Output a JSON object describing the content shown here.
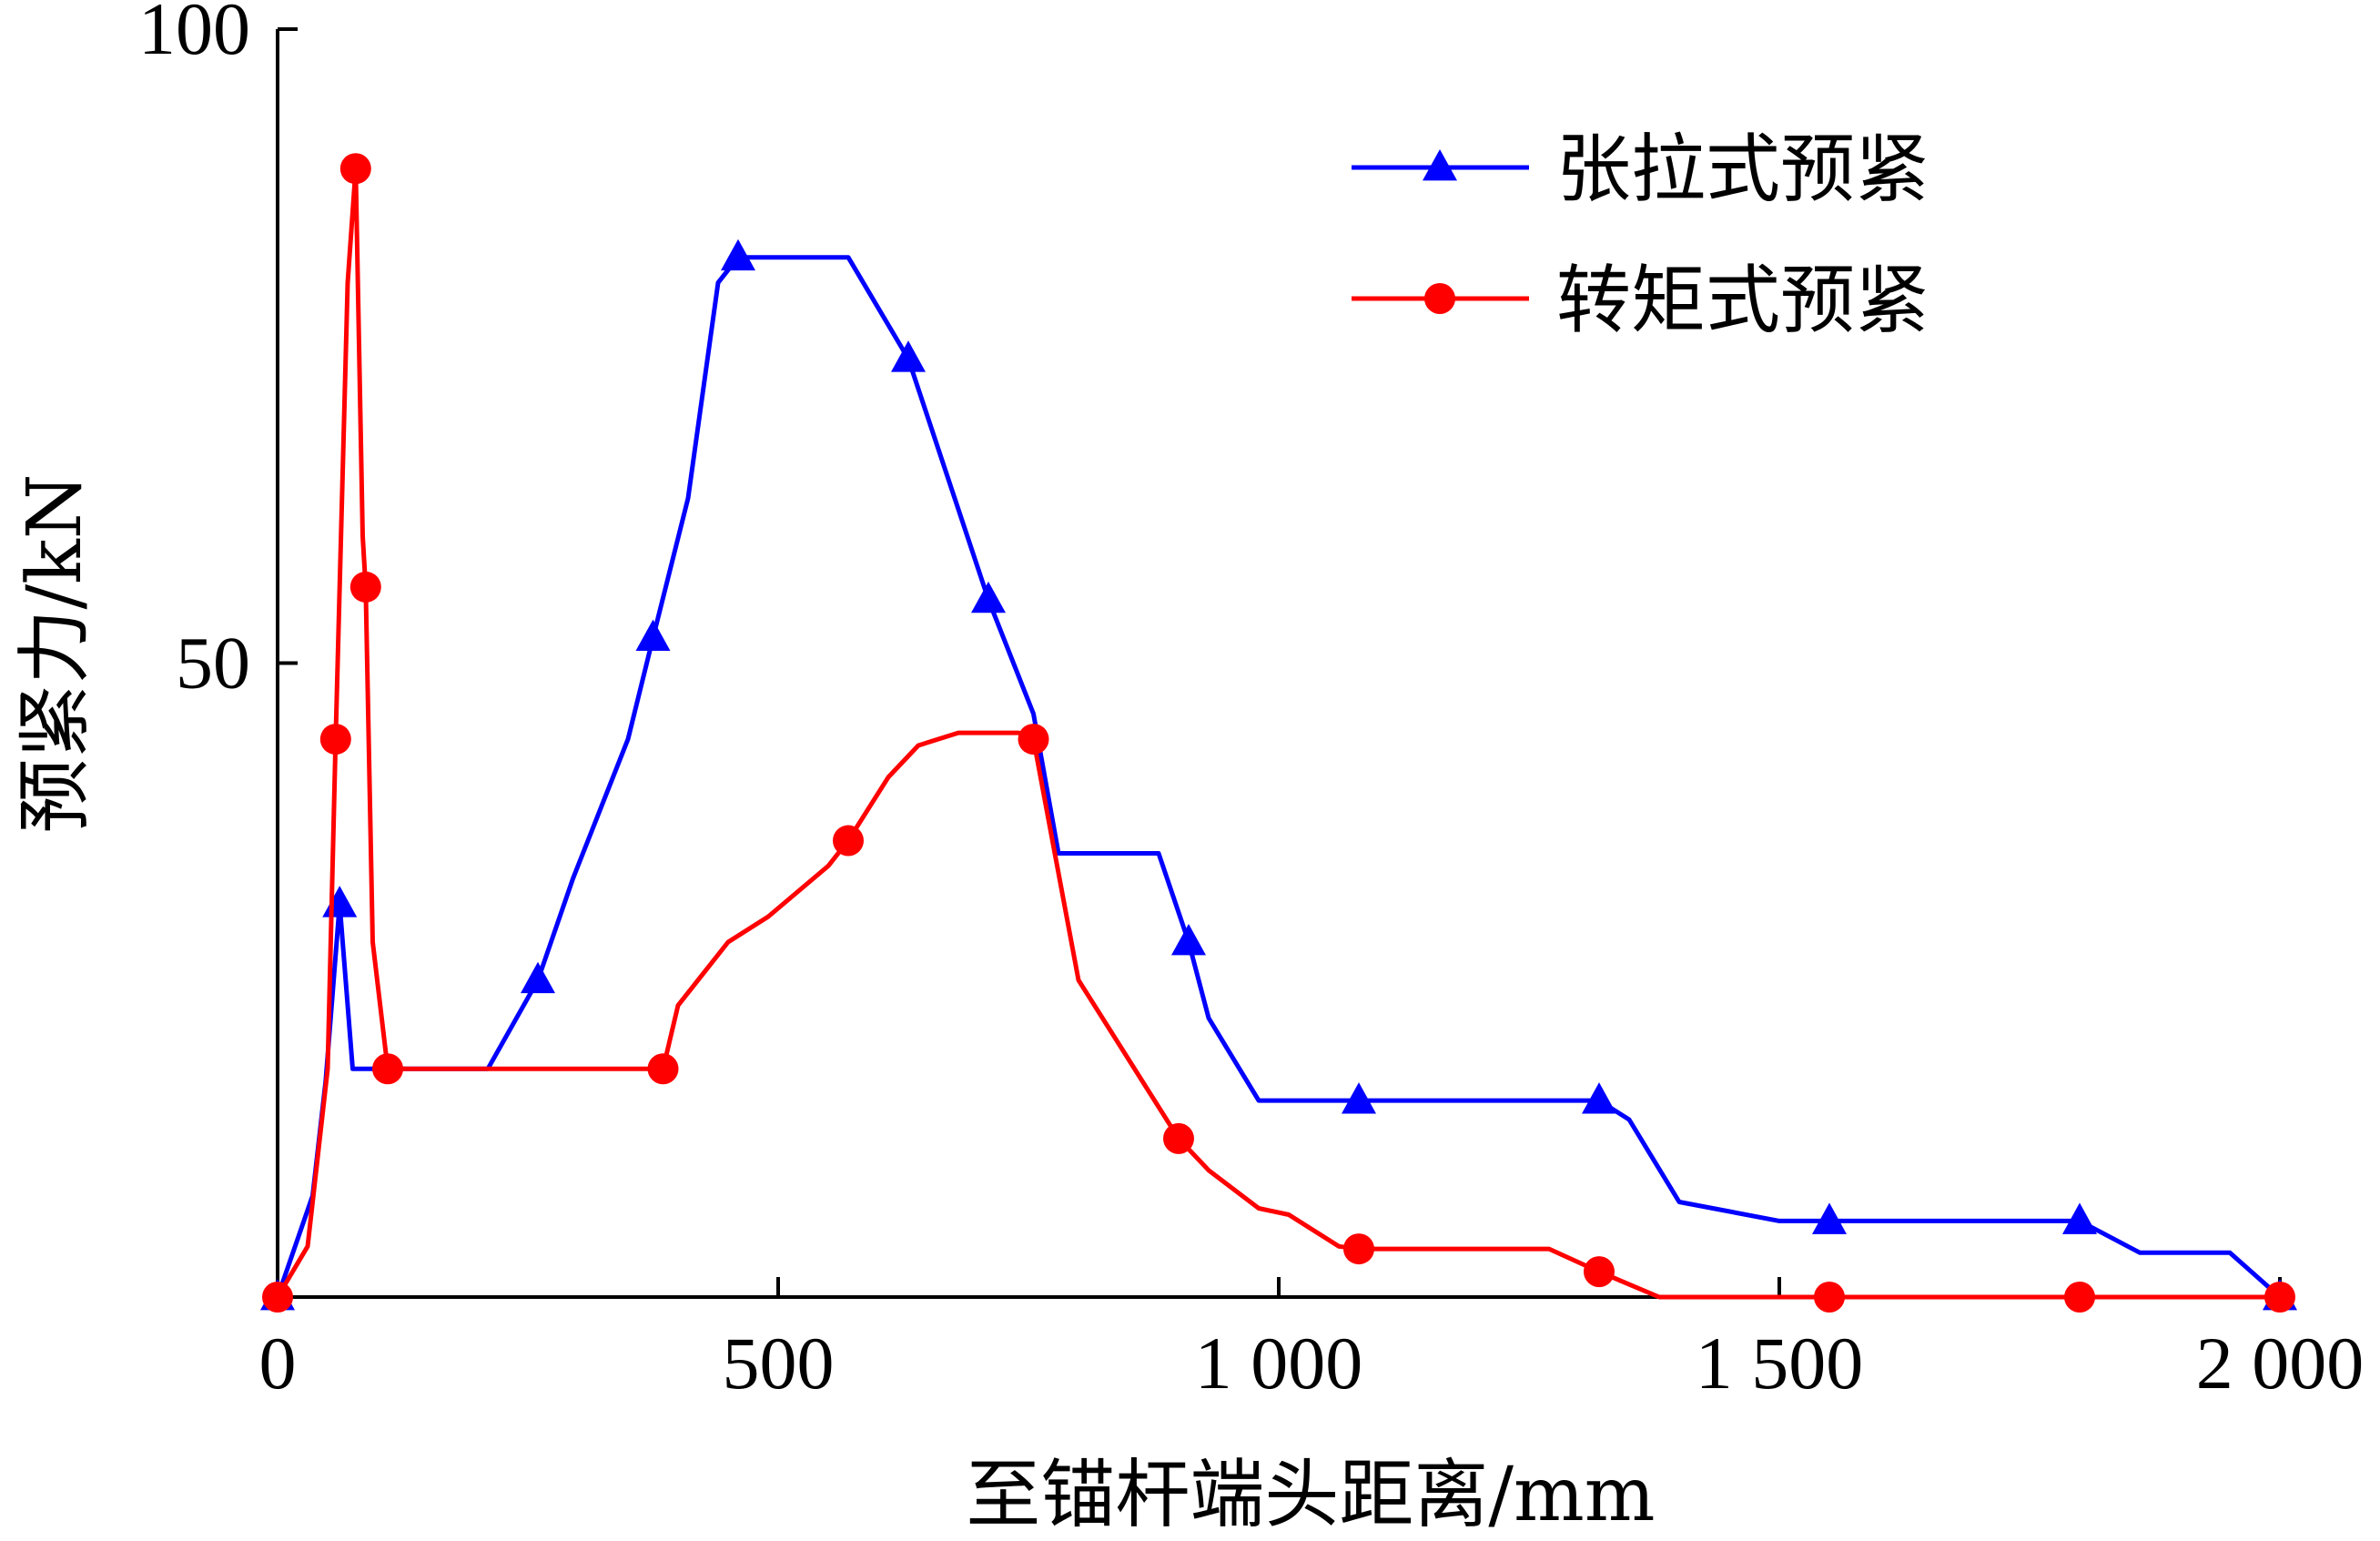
{
  "chart_data": {
    "type": "line",
    "title": "",
    "xlabel": "至锚杆端头距离/mm",
    "ylabel": "预紧力/kN",
    "xlim": [
      0,
      2000
    ],
    "ylim": [
      0,
      100
    ],
    "xticks": [
      0,
      500,
      1000,
      1500,
      2000
    ],
    "xtick_labels": [
      "0",
      "500",
      "1 000",
      "1 500",
      "2 000"
    ],
    "yticks": [
      50,
      100
    ],
    "ytick_labels": [
      "50",
      "100"
    ],
    "grid": false,
    "legend_position": "top-right",
    "series": [
      {
        "name": "张拉式预紧",
        "color": "#0000ff",
        "marker": "triangle",
        "points": [
          [
            0,
            0
          ],
          [
            35,
            8
          ],
          [
            48,
            17
          ],
          [
            62,
            31
          ],
          [
            75,
            18
          ],
          [
            100,
            18
          ],
          [
            210,
            18
          ],
          [
            260,
            25
          ],
          [
            295,
            33
          ],
          [
            350,
            44
          ],
          [
            375,
            52
          ],
          [
            410,
            63
          ],
          [
            440,
            80
          ],
          [
            460,
            82
          ],
          [
            570,
            82
          ],
          [
            630,
            74
          ],
          [
            710,
            55
          ],
          [
            755,
            46
          ],
          [
            780,
            35
          ],
          [
            880,
            35
          ],
          [
            910,
            28
          ],
          [
            930,
            22
          ],
          [
            980,
            15.5
          ],
          [
            1030,
            15.5
          ],
          [
            1080,
            15.5
          ],
          [
            1320,
            15.5
          ],
          [
            1350,
            14
          ],
          [
            1400,
            7.5
          ],
          [
            1500,
            6
          ],
          [
            1550,
            6
          ],
          [
            1750,
            6
          ],
          [
            1800,
            6
          ],
          [
            1860,
            3.5
          ],
          [
            1950,
            3.5
          ],
          [
            2000,
            0
          ]
        ],
        "marker_points": [
          [
            0,
            0
          ],
          [
            62,
            31
          ],
          [
            260,
            25
          ],
          [
            375,
            52
          ],
          [
            460,
            82
          ],
          [
            630,
            74
          ],
          [
            710,
            55
          ],
          [
            910,
            28
          ],
          [
            1080,
            15.5
          ],
          [
            1320,
            15.5
          ],
          [
            1550,
            6
          ],
          [
            1800,
            6
          ],
          [
            2000,
            0
          ]
        ]
      },
      {
        "name": "转矩式预紧",
        "color": "#ff0000",
        "marker": "circle",
        "points": [
          [
            0,
            0
          ],
          [
            30,
            4
          ],
          [
            50,
            18
          ],
          [
            58,
            44
          ],
          [
            70,
            80
          ],
          [
            78,
            89
          ],
          [
            85,
            60
          ],
          [
            88,
            56
          ],
          [
            95,
            28
          ],
          [
            110,
            18
          ],
          [
            190,
            18
          ],
          [
            385,
            18
          ],
          [
            400,
            23
          ],
          [
            450,
            28
          ],
          [
            490,
            30
          ],
          [
            550,
            34
          ],
          [
            570,
            36
          ],
          [
            610,
            41
          ],
          [
            640,
            43.5
          ],
          [
            680,
            44.5
          ],
          [
            740,
            44.5
          ],
          [
            755,
            44
          ],
          [
            800,
            25
          ],
          [
            900,
            12.5
          ],
          [
            930,
            10
          ],
          [
            980,
            7
          ],
          [
            1010,
            6.5
          ],
          [
            1060,
            4
          ],
          [
            1080,
            3.8
          ],
          [
            1150,
            3.8
          ],
          [
            1270,
            3.8
          ],
          [
            1320,
            2
          ],
          [
            1380,
            0
          ],
          [
            1550,
            0
          ],
          [
            1800,
            0
          ],
          [
            2000,
            0
          ]
        ],
        "marker_points": [
          [
            0,
            0
          ],
          [
            58,
            44
          ],
          [
            78,
            89
          ],
          [
            88,
            56
          ],
          [
            110,
            18
          ],
          [
            385,
            18
          ],
          [
            570,
            36
          ],
          [
            755,
            44
          ],
          [
            900,
            12.5
          ],
          [
            1080,
            3.8
          ],
          [
            1320,
            2
          ],
          [
            1550,
            0
          ],
          [
            1800,
            0
          ],
          [
            2000,
            0
          ]
        ]
      }
    ]
  }
}
